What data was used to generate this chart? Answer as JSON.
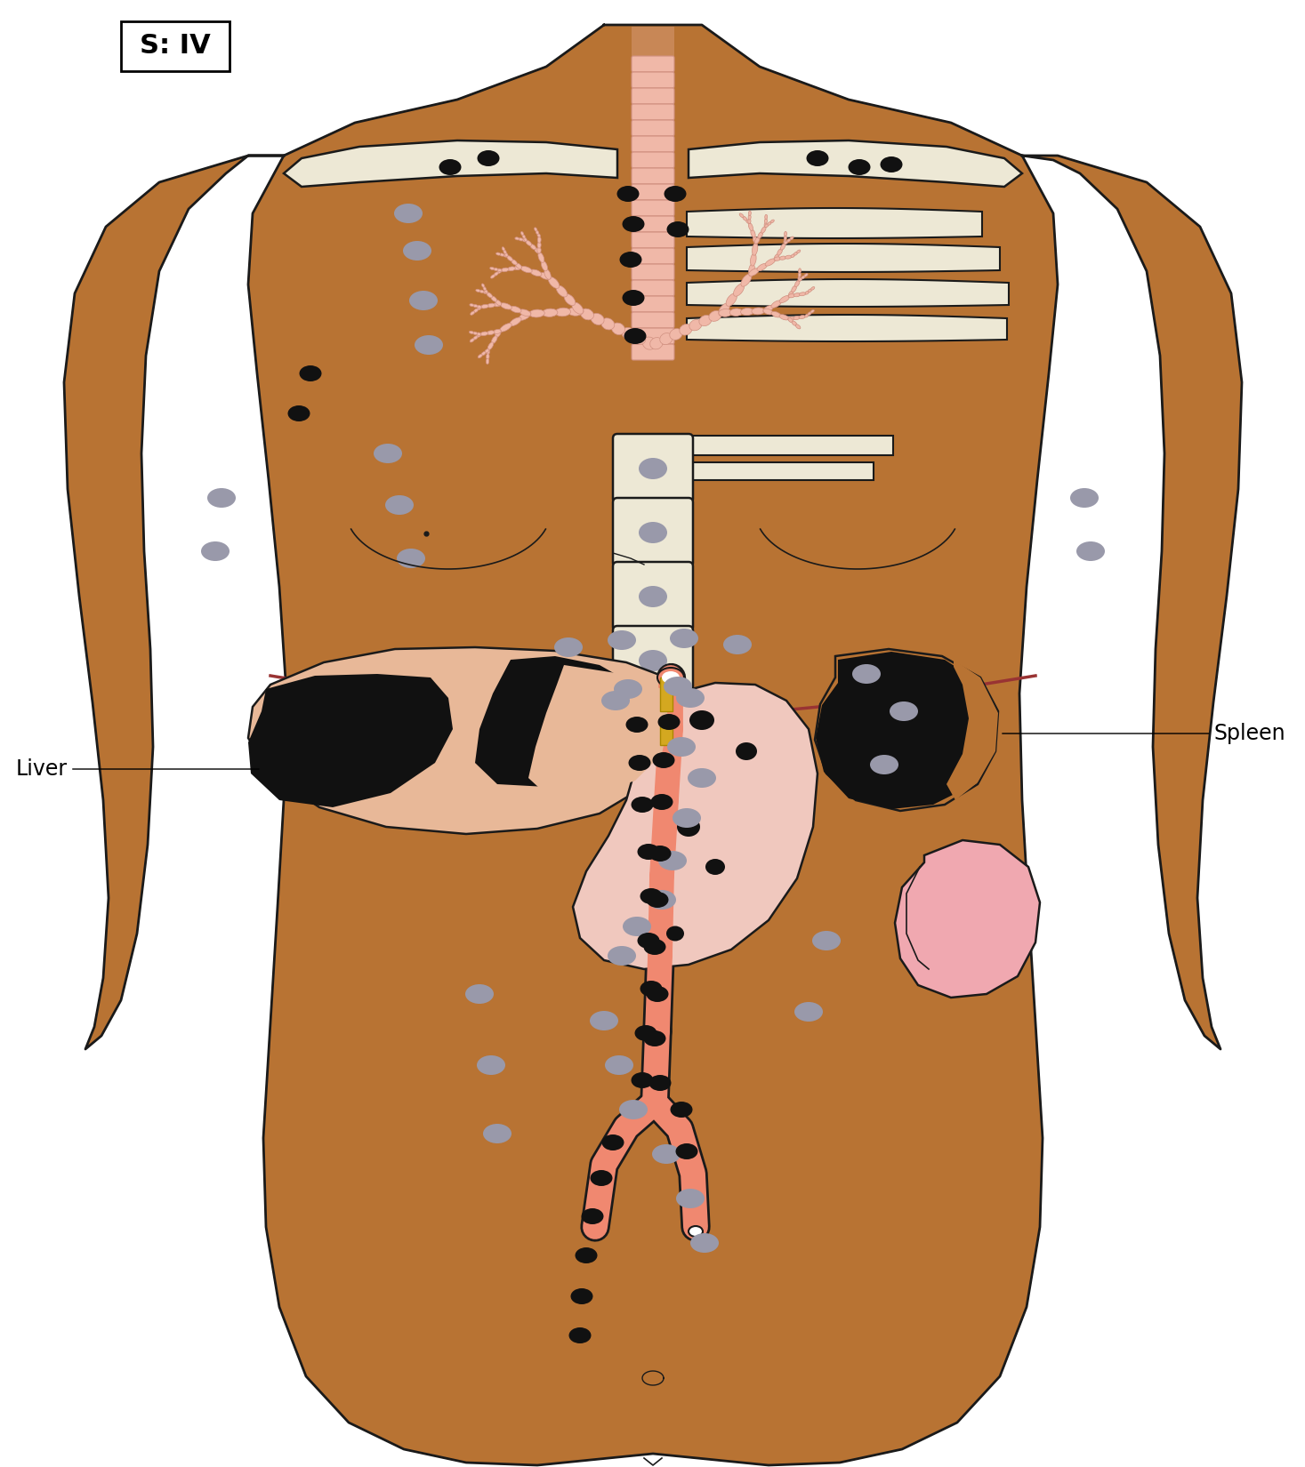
{
  "skin_color": "#B87333",
  "skin_outline": "#1a1a1a",
  "bone_color": "#EDE8D5",
  "lym_gray": "#9999AA",
  "lym_black": "#111111",
  "liver_color": "#E8B898",
  "stomach_color": "#F0C8BE",
  "kidney_color": "#F0A8B0",
  "trachea_color": "#F0B8A8",
  "aorta_color": "#F08870",
  "diaphragm_color": "#993333",
  "bile_color": "#D4A820",
  "label_liver": "Liver",
  "label_spleen": "Spleen",
  "label_stage": "S: IV",
  "fig_width": 14.67,
  "fig_height": 16.5,
  "dpi": 100
}
